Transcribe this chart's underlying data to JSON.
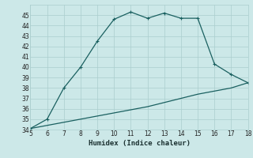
{
  "xlabel": "Humidex (Indice chaleur)",
  "x": [
    5,
    6,
    7,
    8,
    9,
    10,
    11,
    12,
    13,
    14,
    15,
    16,
    17,
    18
  ],
  "y_upper": [
    34.1,
    35.0,
    38.0,
    40.0,
    42.5,
    44.6,
    45.3,
    44.7,
    45.2,
    44.7,
    44.7,
    40.3,
    39.3,
    38.5
  ],
  "y_lower": [
    34.1,
    34.4,
    34.7,
    35.0,
    35.3,
    35.6,
    35.9,
    36.2,
    36.6,
    37.0,
    37.4,
    37.7,
    38.0,
    38.5
  ],
  "line_color": "#1a6060",
  "bg_color": "#cce8e8",
  "grid_major_color": "#aacece",
  "grid_minor_color": "#bbdddd",
  "xlim": [
    5,
    18
  ],
  "ylim": [
    34,
    46
  ],
  "yticks": [
    34,
    35,
    36,
    37,
    38,
    39,
    40,
    41,
    42,
    43,
    44,
    45
  ],
  "xticks": [
    5,
    6,
    7,
    8,
    9,
    10,
    11,
    12,
    13,
    14,
    15,
    16,
    17,
    18
  ],
  "markersize": 2.5,
  "linewidth": 0.9
}
